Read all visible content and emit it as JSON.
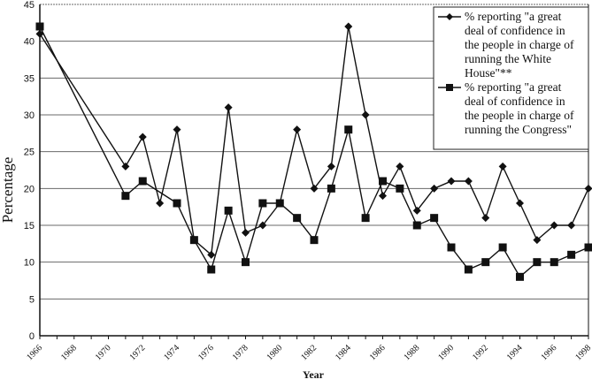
{
  "chart_data": {
    "type": "line",
    "title": "",
    "xlabel": "Year",
    "ylabel": "Percentage",
    "ylim": [
      0,
      45
    ],
    "yticks": [
      0,
      5,
      10,
      15,
      20,
      25,
      30,
      35,
      40,
      45
    ],
    "xlim": [
      1966,
      1998
    ],
    "xticks": [
      1966,
      1968,
      1970,
      1972,
      1974,
      1976,
      1978,
      1980,
      1982,
      1984,
      1986,
      1988,
      1990,
      1992,
      1994,
      1996,
      1998
    ],
    "grid": "horizontal",
    "legend_position": "upper right",
    "x": [
      1966,
      1971,
      1972,
      1973,
      1974,
      1975,
      1976,
      1977,
      1978,
      1979,
      1980,
      1981,
      1982,
      1983,
      1984,
      1985,
      1986,
      1987,
      1988,
      1989,
      1990,
      1991,
      1992,
      1993,
      1994,
      1995,
      1996,
      1997,
      1998
    ],
    "series": [
      {
        "name": "% reporting \"a great deal of confidence in the people in charge of running the White House\"**",
        "marker": "diamond",
        "values": [
          41,
          23,
          27,
          18,
          28,
          13,
          11,
          31,
          14,
          15,
          18,
          28,
          20,
          23,
          42,
          30,
          19,
          23,
          17,
          20,
          21,
          21,
          16,
          23,
          18,
          13,
          15,
          15,
          20
        ]
      },
      {
        "name": "% reporting \"a great deal of confidence in the people in charge of running the Congress\"",
        "marker": "square",
        "values": [
          42,
          19,
          21,
          null,
          18,
          13,
          9,
          17,
          10,
          18,
          18,
          16,
          13,
          20,
          28,
          16,
          21,
          20,
          15,
          16,
          12,
          9,
          10,
          12,
          8,
          10,
          10,
          11,
          12
        ]
      }
    ]
  },
  "legend": {
    "items": [
      {
        "lines": [
          "% reporting \"a great",
          "deal of confidence in",
          "the people in charge of",
          "running the White",
          "House\"**"
        ]
      },
      {
        "lines": [
          "% reporting \"a great",
          "deal of confidence in",
          "the people in charge of",
          "running the Congress\""
        ]
      }
    ]
  },
  "colors": {
    "line": "#111111",
    "grid": "#6a6a6a",
    "background": "#ffffff"
  }
}
